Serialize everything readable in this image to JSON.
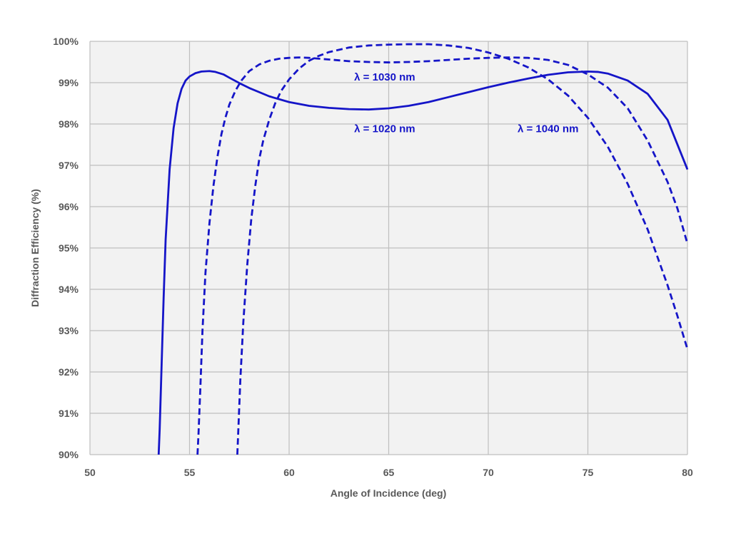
{
  "chart_data": {
    "type": "line",
    "xlabel": "Angle of Incidence (deg)",
    "ylabel": "Diffraction Efficiency (%)",
    "xlim": [
      50,
      80
    ],
    "ylim": [
      90,
      100
    ],
    "x_ticks": [
      50,
      55,
      60,
      65,
      70,
      75,
      80
    ],
    "x_tick_labels": [
      "50",
      "55",
      "60",
      "65",
      "70",
      "75",
      "80"
    ],
    "y_ticks": [
      90,
      91,
      92,
      93,
      94,
      95,
      96,
      97,
      98,
      99,
      100
    ],
    "y_tick_labels": [
      "90%",
      "91%",
      "92%",
      "93%",
      "94%",
      "95%",
      "96%",
      "97%",
      "98%",
      "99%",
      "100%"
    ],
    "grid": true,
    "legend": "none",
    "colors": {
      "series": "#1515c8",
      "plot_bg": "#f2f2f2",
      "grid": "#bfbfbf",
      "text": "#595959"
    },
    "annotations": [
      {
        "text": "λ = 1030 nm",
        "x": 64.8,
        "y": 99.05
      },
      {
        "text": "λ = 1020 nm",
        "x": 64.8,
        "y": 97.8
      },
      {
        "text": "λ = 1040 nm",
        "x": 73.0,
        "y": 97.8
      }
    ],
    "series": [
      {
        "style": "solid",
        "x": [
          53.45,
          53.5,
          53.6,
          53.7,
          53.8,
          54.0,
          54.2,
          54.4,
          54.6,
          54.8,
          55.0,
          55.3,
          55.6,
          56.0,
          56.3,
          56.7,
          57.0,
          57.5,
          58.0,
          59.0,
          60.0,
          61.0,
          62.0,
          63.0,
          64.0,
          65.0,
          66.0,
          67.0,
          68.0,
          69.0,
          70.0,
          71.0,
          72.0,
          73.0,
          74.0,
          75.0,
          75.5,
          76.0,
          77.0,
          78.0,
          79.0,
          80.0
        ],
        "y": [
          90.0,
          90.6,
          92.2,
          93.8,
          95.2,
          96.9,
          97.9,
          98.5,
          98.85,
          99.05,
          99.15,
          99.23,
          99.27,
          99.28,
          99.26,
          99.2,
          99.12,
          98.99,
          98.87,
          98.67,
          98.53,
          98.44,
          98.39,
          98.36,
          98.35,
          98.38,
          98.44,
          98.53,
          98.65,
          98.77,
          98.89,
          99.0,
          99.1,
          99.19,
          99.25,
          99.27,
          99.26,
          99.22,
          99.05,
          98.73,
          98.1,
          96.9
        ]
      },
      {
        "style": "dashed",
        "x": [
          55.4,
          55.45,
          55.55,
          55.65,
          55.8,
          56.0,
          56.2,
          56.4,
          56.6,
          56.8,
          57.0,
          57.3,
          57.6,
          58.0,
          58.5,
          59.0,
          59.5,
          60.0,
          60.5,
          61.0,
          62.0,
          63.0,
          64.0,
          65.0,
          66.0,
          67.0,
          68.0,
          69.0,
          70.0,
          71.0,
          72.0,
          73.0,
          74.0,
          75.0,
          76.0,
          77.0,
          78.0,
          79.0,
          79.5,
          80.0
        ],
        "y": [
          90.0,
          90.5,
          91.7,
          93.0,
          94.4,
          95.6,
          96.5,
          97.2,
          97.75,
          98.15,
          98.47,
          98.8,
          99.05,
          99.28,
          99.44,
          99.53,
          99.58,
          99.6,
          99.61,
          99.6,
          99.56,
          99.52,
          99.5,
          99.49,
          99.5,
          99.52,
          99.55,
          99.58,
          99.6,
          99.61,
          99.6,
          99.55,
          99.43,
          99.2,
          98.88,
          98.38,
          97.6,
          96.6,
          95.95,
          95.1
        ]
      },
      {
        "style": "dashed",
        "x": [
          57.4,
          57.45,
          57.55,
          57.7,
          57.9,
          58.1,
          58.3,
          58.5,
          58.7,
          59.0,
          59.3,
          59.6,
          60.0,
          60.5,
          61.0,
          61.5,
          62.0,
          63.0,
          64.0,
          65.0,
          66.0,
          67.0,
          68.0,
          69.0,
          70.0,
          71.0,
          72.0,
          73.0,
          74.0,
          75.0,
          76.0,
          77.0,
          78.0,
          79.0,
          79.5,
          80.0
        ],
        "y": [
          90.0,
          90.6,
          91.8,
          93.2,
          94.6,
          95.7,
          96.5,
          97.15,
          97.6,
          98.1,
          98.5,
          98.8,
          99.08,
          99.34,
          99.53,
          99.65,
          99.74,
          99.85,
          99.9,
          99.92,
          99.93,
          99.93,
          99.9,
          99.84,
          99.73,
          99.58,
          99.37,
          99.08,
          98.69,
          98.15,
          97.45,
          96.55,
          95.45,
          94.1,
          93.35,
          92.55
        ]
      }
    ]
  }
}
